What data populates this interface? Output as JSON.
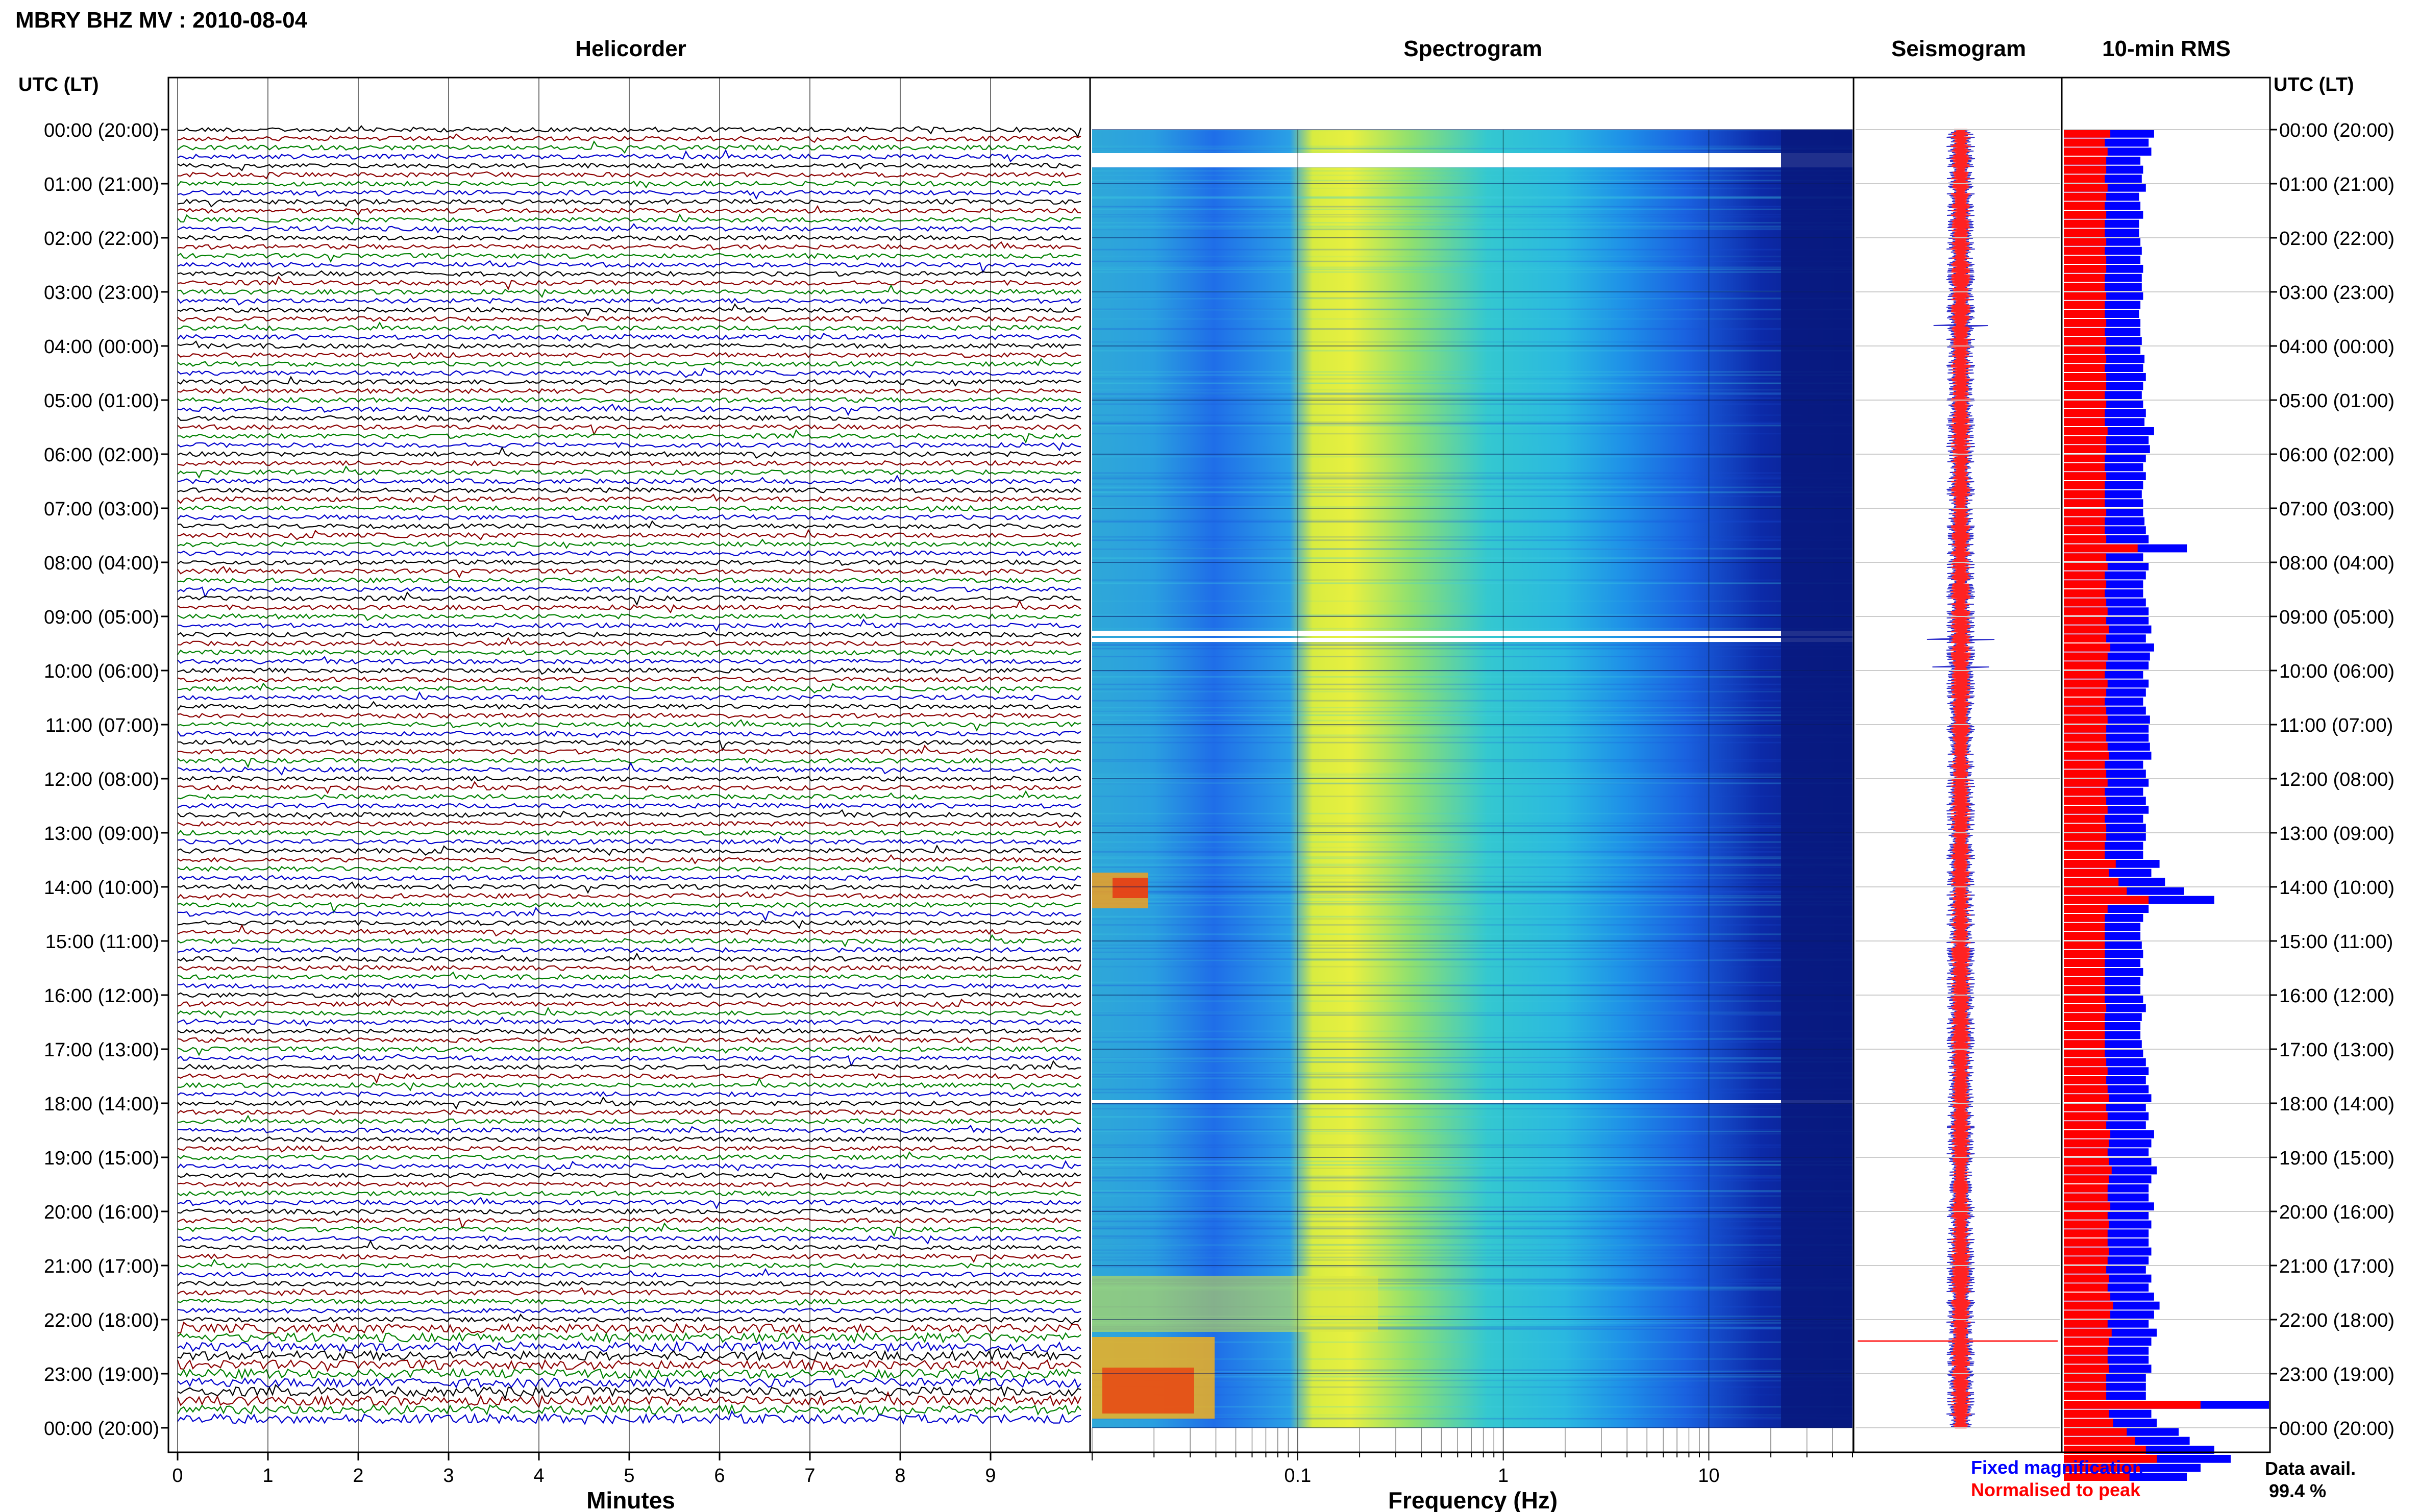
{
  "header": {
    "title": "MBRY BHZ MV : 2010-08-04"
  },
  "panels": {
    "helicorder": "Helicorder",
    "spectrogram": "Spectrogram",
    "seismogram": "Seismogram",
    "rms": "10-min RMS"
  },
  "axis": {
    "utc_label_left": "UTC (LT)",
    "utc_label_right": "UTC (LT)",
    "minutes_label": "Minutes",
    "frequency_label": "Frequency (Hz)"
  },
  "legend": {
    "fixed": "Fixed magnification",
    "normalised": "Normalised to peak",
    "fixed_color": "#0000ff",
    "normalised_color": "#ff0000"
  },
  "data_avail": {
    "label": "Data avail.",
    "value": "99.4 %"
  },
  "chart_data": {
    "type": "heatmap",
    "time_labels": [
      "00:00 (20:00)",
      "01:00 (21:00)",
      "02:00 (22:00)",
      "03:00 (23:00)",
      "04:00 (00:00)",
      "05:00 (01:00)",
      "06:00 (02:00)",
      "07:00 (03:00)",
      "08:00 (04:00)",
      "09:00 (05:00)",
      "10:00 (06:00)",
      "11:00 (07:00)",
      "12:00 (08:00)",
      "13:00 (09:00)",
      "14:00 (10:00)",
      "15:00 (11:00)",
      "16:00 (12:00)",
      "17:00 (13:00)",
      "18:00 (14:00)",
      "19:00 (15:00)",
      "20:00 (16:00)",
      "21:00 (17:00)",
      "22:00 (18:00)",
      "23:00 (19:00)",
      "00:00 (20:00)"
    ],
    "minutes_ticks": [
      "0",
      "1",
      "2",
      "3",
      "4",
      "5",
      "6",
      "7",
      "8",
      "9"
    ],
    "minutes_range": [
      0,
      10
    ],
    "frequency_ticks": [
      {
        "value": 0.1,
        "label": "0.1"
      },
      {
        "value": 1,
        "label": "1"
      },
      {
        "value": 10,
        "label": "10"
      }
    ],
    "frequency_range": [
      0.01,
      50
    ],
    "frequency_scale": "log",
    "helicorder_colors": [
      "#000000",
      "#8b0000",
      "#008000",
      "#0000cd"
    ],
    "rms_fixed": [
      0.66,
      0.62,
      0.64,
      0.56,
      0.58,
      0.57,
      0.6,
      0.55,
      0.56,
      0.58,
      0.55,
      0.55,
      0.56,
      0.57,
      0.56,
      0.58,
      0.57,
      0.57,
      0.58,
      0.56,
      0.55,
      0.56,
      0.56,
      0.57,
      0.56,
      0.59,
      0.58,
      0.6,
      0.58,
      0.57,
      0.58,
      0.6,
      0.59,
      0.66,
      0.62,
      0.63,
      0.6,
      0.58,
      0.6,
      0.58,
      0.57,
      0.58,
      0.58,
      0.59,
      0.6,
      0.62,
      0.9,
      0.58,
      0.62,
      0.6,
      0.58,
      0.58,
      0.6,
      0.62,
      0.62,
      0.64,
      0.6,
      0.66,
      0.63,
      0.62,
      0.58,
      0.62,
      0.6,
      0.58,
      0.6,
      0.63,
      0.62,
      0.62,
      0.63,
      0.64,
      0.58,
      0.6,
      0.62,
      0.58,
      0.6,
      0.62,
      0.58,
      0.6,
      0.6,
      0.58,
      0.58,
      0.7,
      0.64,
      0.74,
      0.88,
      1.1,
      0.62,
      0.58,
      0.56,
      0.56,
      0.57,
      0.58,
      0.56,
      0.58,
      0.56,
      0.56,
      0.58,
      0.6,
      0.57,
      0.56,
      0.56,
      0.57,
      0.58,
      0.6,
      0.62,
      0.6,
      0.62,
      0.64,
      0.6,
      0.62,
      0.6,
      0.66,
      0.64,
      0.62,
      0.64,
      0.68,
      0.64,
      0.62,
      0.62,
      0.66,
      0.62,
      0.64,
      0.62,
      0.62,
      0.64,
      0.62,
      0.6,
      0.64,
      0.62,
      0.66,
      0.7,
      0.66,
      0.62,
      0.68,
      0.64,
      0.62,
      0.62,
      0.64,
      0.6,
      0.6,
      0.6,
      1.5,
      0.64,
      0.68,
      0.84,
      0.92,
      1.1,
      1.22,
      1.0,
      0.9
    ],
    "rms_normalised": [
      0.34,
      0.3,
      0.32,
      0.31,
      0.31,
      0.3,
      0.32,
      0.31,
      0.3,
      0.31,
      0.3,
      0.3,
      0.31,
      0.3,
      0.31,
      0.31,
      0.3,
      0.3,
      0.31,
      0.3,
      0.3,
      0.31,
      0.3,
      0.31,
      0.3,
      0.31,
      0.3,
      0.31,
      0.31,
      0.3,
      0.31,
      0.3,
      0.3,
      0.32,
      0.31,
      0.31,
      0.3,
      0.3,
      0.31,
      0.3,
      0.3,
      0.3,
      0.31,
      0.3,
      0.3,
      0.31,
      0.54,
      0.31,
      0.32,
      0.3,
      0.31,
      0.3,
      0.31,
      0.32,
      0.31,
      0.33,
      0.31,
      0.34,
      0.32,
      0.31,
      0.3,
      0.32,
      0.31,
      0.3,
      0.31,
      0.32,
      0.31,
      0.31,
      0.32,
      0.33,
      0.3,
      0.31,
      0.32,
      0.3,
      0.31,
      0.32,
      0.3,
      0.31,
      0.31,
      0.3,
      0.3,
      0.38,
      0.33,
      0.4,
      0.46,
      0.62,
      0.32,
      0.3,
      0.3,
      0.3,
      0.3,
      0.3,
      0.3,
      0.3,
      0.3,
      0.3,
      0.3,
      0.31,
      0.3,
      0.3,
      0.3,
      0.3,
      0.3,
      0.31,
      0.32,
      0.31,
      0.32,
      0.33,
      0.31,
      0.32,
      0.31,
      0.34,
      0.33,
      0.32,
      0.33,
      0.35,
      0.33,
      0.32,
      0.32,
      0.34,
      0.32,
      0.33,
      0.32,
      0.32,
      0.33,
      0.32,
      0.31,
      0.33,
      0.32,
      0.34,
      0.36,
      0.34,
      0.32,
      0.35,
      0.33,
      0.32,
      0.32,
      0.33,
      0.31,
      0.31,
      0.31,
      1.0,
      0.33,
      0.36,
      0.46,
      0.52,
      0.6,
      0.68,
      0.56,
      0.48
    ],
    "rms_range": [
      0,
      1.5
    ]
  }
}
